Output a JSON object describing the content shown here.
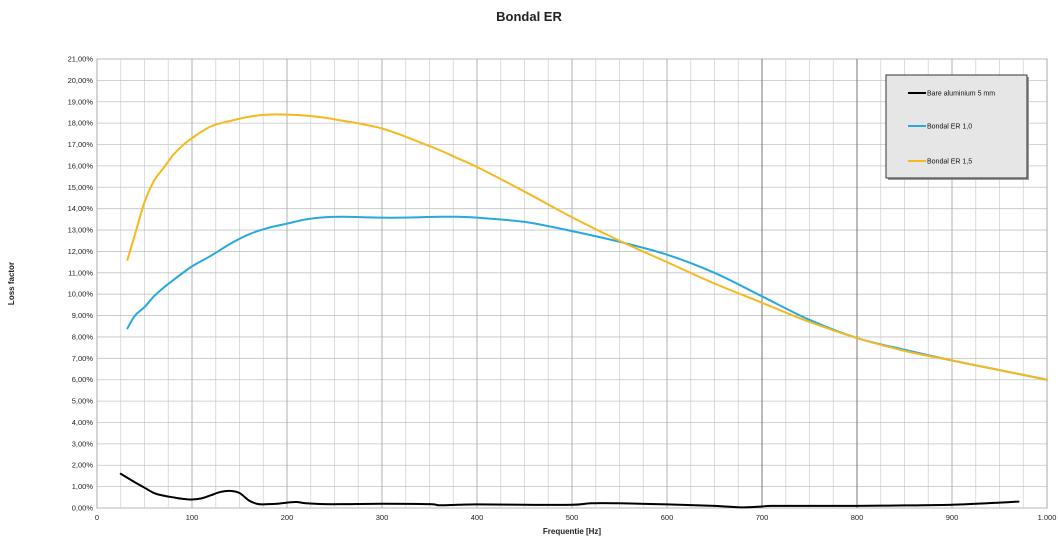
{
  "chart_data": {
    "type": "line",
    "title": "Bondal ER",
    "xlabel": "Frequentie [Hz]",
    "ylabel": "Loss factor",
    "xlim": [
      0,
      1000
    ],
    "ylim": [
      0,
      21
    ],
    "x_ticks": [
      0,
      100,
      200,
      300,
      400,
      500,
      600,
      700,
      800,
      900,
      1000
    ],
    "x_tick_labels": [
      "0",
      "100",
      "200",
      "300",
      "400",
      "500",
      "600",
      "700",
      "800",
      "900",
      "1.000"
    ],
    "x_minor_step": 25,
    "y_ticks": [
      0,
      1,
      2,
      3,
      4,
      5,
      6,
      7,
      8,
      9,
      10,
      11,
      12,
      13,
      14,
      15,
      16,
      17,
      18,
      19,
      20,
      21
    ],
    "y_tick_labels": [
      "0,00%",
      "1,00%",
      "2,00%",
      "3,00%",
      "4,00%",
      "5,00%",
      "6,00%",
      "7,00%",
      "8,00%",
      "9,00%",
      "10,00%",
      "11,00%",
      "12,00%",
      "13,00%",
      "14,00%",
      "15,00%",
      "16,00%",
      "17,00%",
      "18,00%",
      "19,00%",
      "20,00%",
      "21,00%"
    ],
    "grid": true,
    "legend_position": "top-right",
    "series": [
      {
        "name": "Bare aluminium 5 mm",
        "color": "#000000",
        "x": [
          25,
          40,
          50,
          60,
          70,
          80,
          90,
          100,
          110,
          120,
          130,
          140,
          150,
          160,
          170,
          180,
          190,
          200,
          210,
          220,
          240,
          260,
          300,
          350,
          360,
          380,
          400,
          450,
          500,
          520,
          550,
          600,
          650,
          680,
          700,
          710,
          750,
          800,
          850,
          900,
          950,
          970
        ],
        "y": [
          1.6,
          1.2,
          0.95,
          0.7,
          0.58,
          0.5,
          0.43,
          0.4,
          0.45,
          0.6,
          0.75,
          0.8,
          0.7,
          0.35,
          0.18,
          0.18,
          0.2,
          0.25,
          0.28,
          0.22,
          0.18,
          0.18,
          0.2,
          0.18,
          0.13,
          0.15,
          0.17,
          0.15,
          0.15,
          0.22,
          0.22,
          0.17,
          0.1,
          0.03,
          0.07,
          0.1,
          0.1,
          0.1,
          0.12,
          0.15,
          0.25,
          0.3
        ]
      },
      {
        "name": "Bondal ER 1,0",
        "color": "#29a8e0",
        "x": [
          32,
          40,
          50,
          60,
          70,
          80,
          100,
          120,
          140,
          160,
          180,
          200,
          220,
          240,
          260,
          280,
          300,
          320,
          340,
          360,
          380,
          400,
          450,
          500,
          550,
          600,
          650,
          700,
          750,
          800,
          850,
          900,
          950,
          1000
        ],
        "y": [
          8.4,
          9.0,
          9.4,
          9.9,
          10.3,
          10.65,
          11.3,
          11.8,
          12.35,
          12.8,
          13.1,
          13.3,
          13.5,
          13.6,
          13.62,
          13.6,
          13.58,
          13.58,
          13.6,
          13.62,
          13.62,
          13.58,
          13.38,
          12.95,
          12.45,
          11.85,
          11.0,
          9.9,
          8.8,
          7.95,
          7.4,
          6.9,
          6.45,
          6.0
        ]
      },
      {
        "name": "Bondal ER 1,5",
        "color": "#f5b91e",
        "x": [
          32,
          40,
          50,
          60,
          70,
          80,
          90,
          100,
          120,
          140,
          160,
          180,
          200,
          220,
          240,
          260,
          280,
          300,
          320,
          340,
          360,
          380,
          400,
          450,
          500,
          550,
          600,
          650,
          700,
          750,
          800,
          850,
          900,
          950,
          1000
        ],
        "y": [
          11.6,
          12.8,
          14.3,
          15.3,
          15.9,
          16.5,
          16.95,
          17.3,
          17.85,
          18.1,
          18.3,
          18.4,
          18.4,
          18.35,
          18.25,
          18.1,
          17.95,
          17.75,
          17.45,
          17.1,
          16.75,
          16.35,
          15.95,
          14.8,
          13.6,
          12.5,
          11.5,
          10.5,
          9.6,
          8.7,
          7.95,
          7.35,
          6.9,
          6.45,
          6.0
        ]
      }
    ]
  }
}
